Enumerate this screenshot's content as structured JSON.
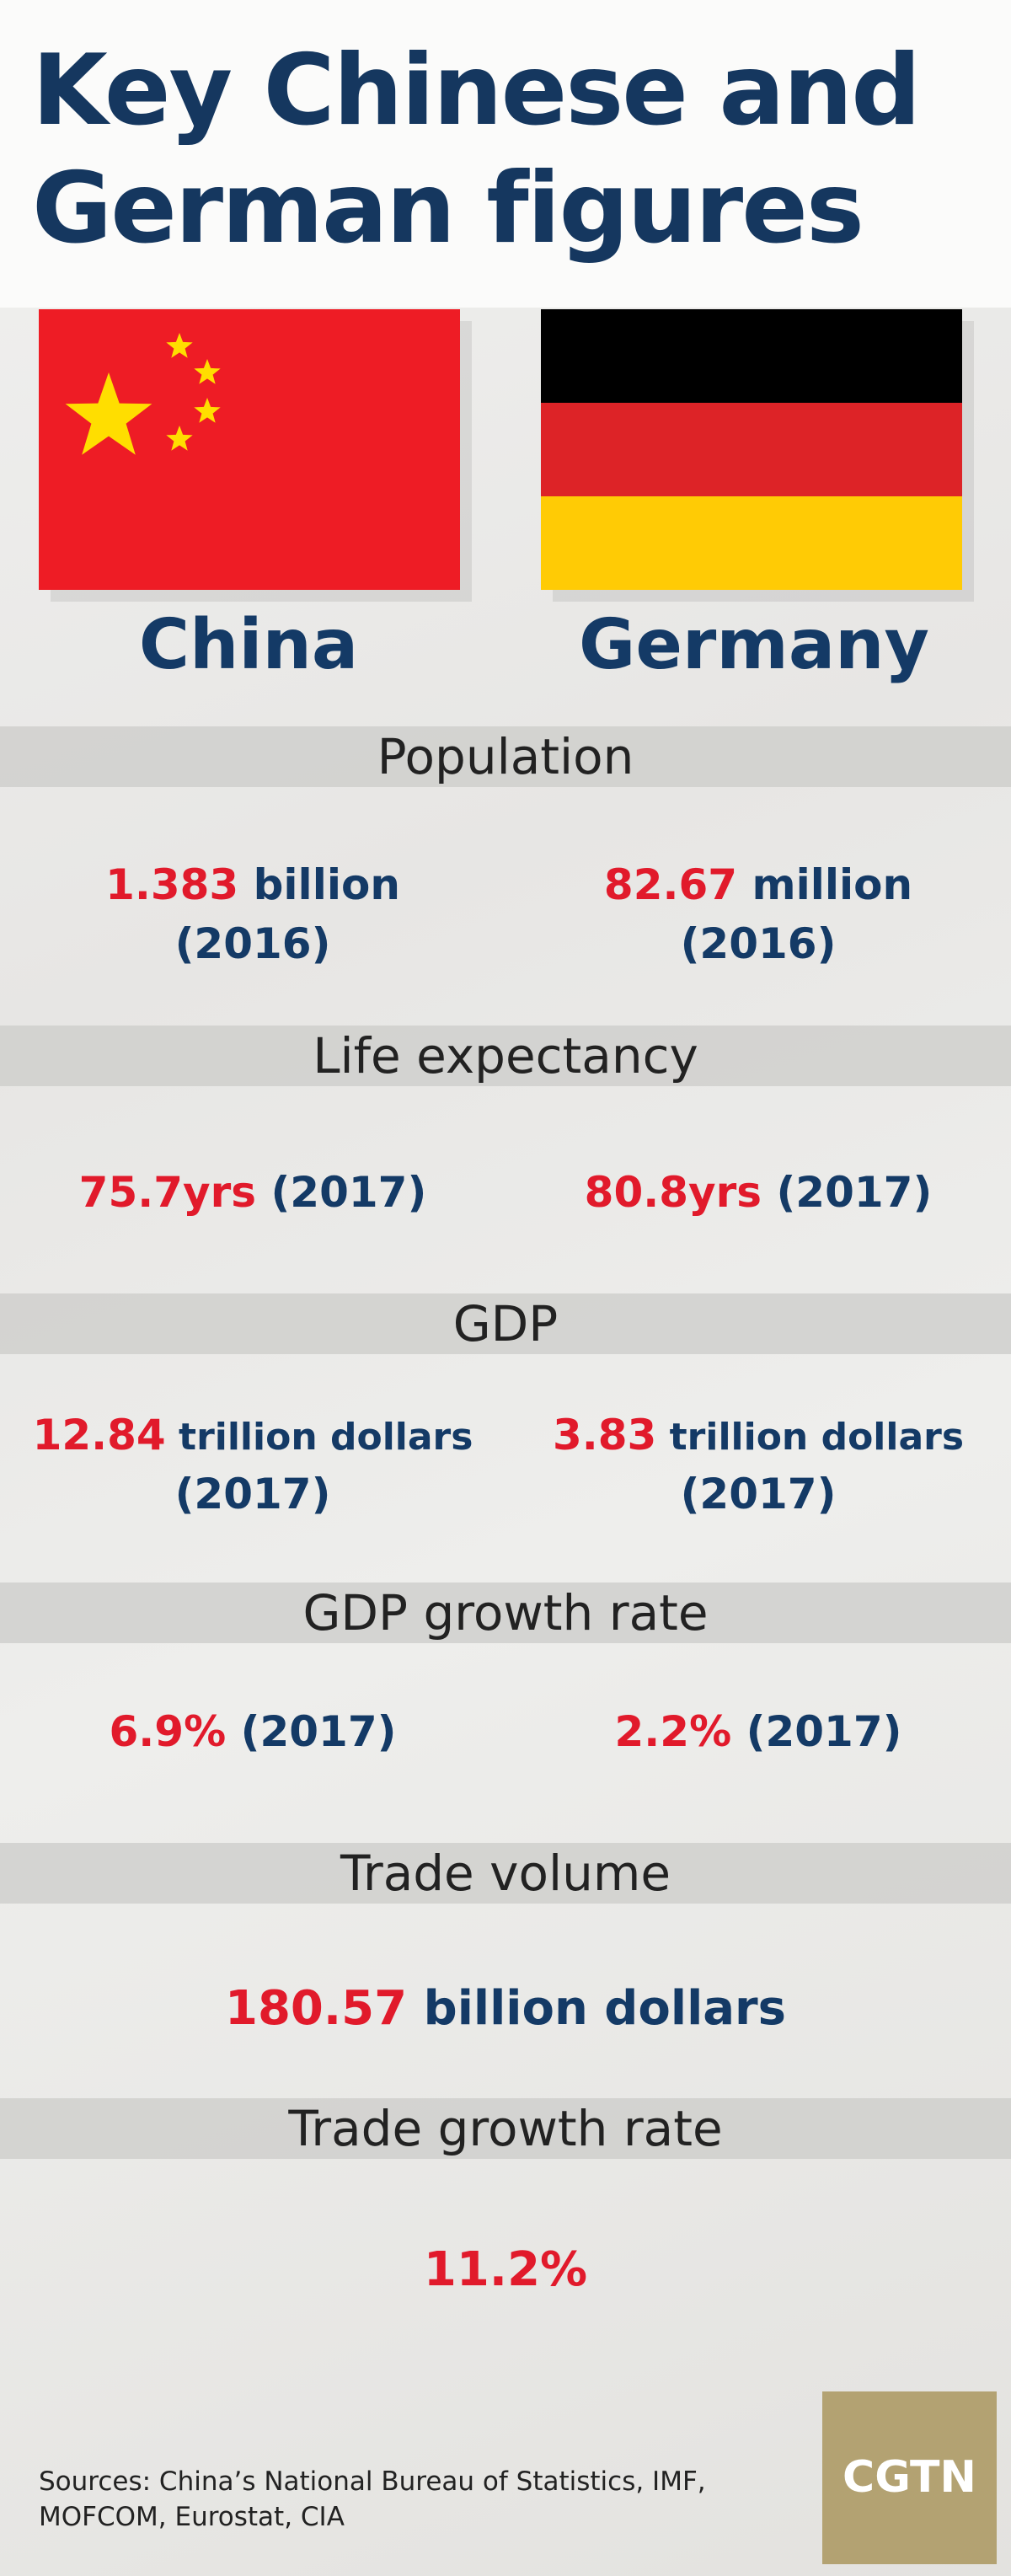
{
  "title": {
    "line1": "Key Chinese and",
    "line2": "German figures"
  },
  "countries": {
    "china": "China",
    "germany": "Germany"
  },
  "colors": {
    "navy": "#143a66",
    "red": "#e11a2b",
    "china_red": "#ee1c25",
    "china_yellow": "#ffde00",
    "de_black": "#000000",
    "de_red": "#dd0000",
    "de_gold": "#ffce00",
    "logo_gold": "#b3a272"
  },
  "sections": {
    "population": {
      "label": "Population",
      "china": {
        "num": "1.383",
        "unit": " billion",
        "year": "(2016)"
      },
      "germany": {
        "num": "82.67",
        "unit": " million",
        "year": "(2016)"
      }
    },
    "life": {
      "label": "Life expectancy",
      "china": {
        "num": "75.7yrs",
        "year": " (2017)"
      },
      "germany": {
        "num": "80.8yrs",
        "year": " (2017)"
      }
    },
    "gdp": {
      "label": "GDP",
      "china": {
        "num": "12.84",
        "unit": " trillion dollars",
        "year": "(2017)"
      },
      "germany": {
        "num": "3.83",
        "unit": " trillion dollars",
        "year": "(2017)"
      }
    },
    "gdp_growth": {
      "label": "GDP growth rate",
      "china": {
        "num": "6.9%",
        "year": " (2017)"
      },
      "germany": {
        "num": "2.2%",
        "year": " (2017)"
      }
    },
    "trade_volume": {
      "label": "Trade volume",
      "num": "180.57",
      "unit": " billion dollars"
    },
    "trade_growth": {
      "label": "Trade growth rate",
      "num": "11.2%"
    }
  },
  "footer": {
    "sources_line1": "Sources: China’s National Bureau of Statistics, IMF,",
    "sources_line2": "MOFCOM, Eurostat, CIA",
    "logo": "CGTN"
  }
}
